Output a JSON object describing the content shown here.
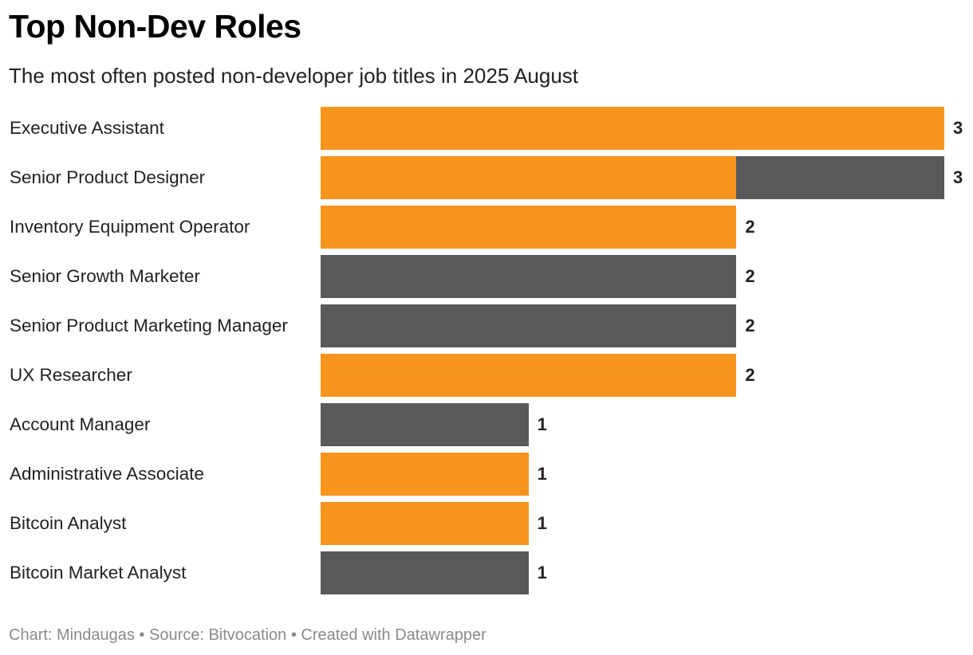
{
  "header": {
    "title": "Top Non-Dev Roles",
    "subtitle": "The most often posted non-developer job titles in 2025 August"
  },
  "footer": {
    "text": "Chart: Mindaugas • Source: Bitvocation • Created with Datawrapper"
  },
  "colors": {
    "orange": "#F7941D",
    "gray": "#595959"
  },
  "chart_data": {
    "type": "bar",
    "orientation": "horizontal",
    "stacked": true,
    "title": "Top Non-Dev Roles",
    "subtitle": "The most often posted non-developer job titles in 2025 August",
    "xlim": [
      0,
      3
    ],
    "categories": [
      "Executive Assistant",
      "Senior Product Designer",
      "Inventory Equipment Operator",
      "Senior Growth Marketer",
      "Senior Product Marketing Manager",
      "UX Researcher",
      "Account Manager",
      "Administrative Associate",
      "Bitcoin Analyst",
      "Bitcoin Market Analyst"
    ],
    "series": [
      {
        "name": "orange",
        "color": "#F7941D",
        "values": [
          3,
          2,
          2,
          0,
          0,
          2,
          0,
          1,
          1,
          0
        ]
      },
      {
        "name": "gray",
        "color": "#595959",
        "values": [
          0,
          1,
          0,
          2,
          2,
          0,
          1,
          0,
          0,
          1
        ]
      }
    ],
    "totals": [
      "3",
      "3",
      "2",
      "2",
      "2",
      "2",
      "1",
      "1",
      "1",
      "1"
    ]
  }
}
